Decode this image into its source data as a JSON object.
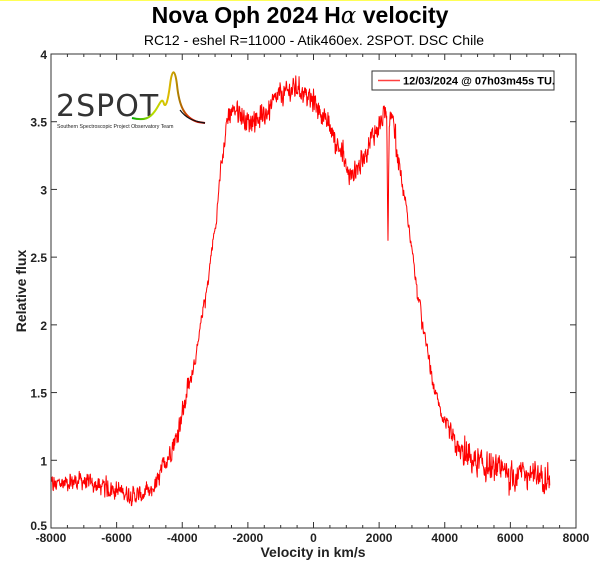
{
  "chart_data": {
    "type": "line",
    "title": "Nova Oph 2024 H",
    "title_greek": "α",
    "title_suffix": " velocity",
    "subtitle": "RC12 - eshel R=11000 - Atik460ex. 2SPOT. DSC Chile",
    "xlabel": "Velocity in km/s",
    "ylabel": "Relative flux",
    "xlim": [
      -8000,
      8000
    ],
    "ylim": [
      0.5,
      4
    ],
    "xticks": [
      -8000,
      -6000,
      -4000,
      -2000,
      0,
      2000,
      4000,
      6000,
      8000
    ],
    "xtick_labels": [
      "-8000",
      "-6000",
      "-4000",
      "-2000",
      "0",
      "2000",
      "4000",
      "6000",
      "8000"
    ],
    "xminor_step": 500,
    "yticks": [
      0.5,
      1,
      1.5,
      2,
      2.5,
      3,
      3.5,
      4
    ],
    "ytick_labels": [
      "0.5",
      "1",
      "1.5",
      "2",
      "2.5",
      "3",
      "3.5",
      "4"
    ],
    "grid": false,
    "legend_position": "top-right",
    "series": [
      {
        "name": "12/03/2024 @ 07h03m45s TU.",
        "color": "#ff0000",
        "x_range": [
          -8000,
          7200
        ],
        "profile_x": [
          -8000,
          -7500,
          -7000,
          -6500,
          -6000,
          -5500,
          -5000,
          -4800,
          -4500,
          -4200,
          -4000,
          -3800,
          -3600,
          -3300,
          -3000,
          -2800,
          -2600,
          -2400,
          -2000,
          -1500,
          -1000,
          -500,
          0,
          400,
          800,
          1100,
          1500,
          1800,
          2200,
          2400,
          2600,
          2800,
          3000,
          3200,
          3400,
          3700,
          4000,
          4500,
          5000,
          5500,
          6000,
          6500,
          7200
        ],
        "profile_y": [
          0.82,
          0.84,
          0.85,
          0.8,
          0.78,
          0.74,
          0.75,
          0.82,
          1.0,
          1.15,
          1.35,
          1.55,
          1.75,
          2.2,
          2.7,
          3.2,
          3.55,
          3.6,
          3.5,
          3.55,
          3.7,
          3.75,
          3.65,
          3.5,
          3.3,
          3.1,
          3.2,
          3.4,
          3.55,
          3.5,
          3.2,
          2.9,
          2.55,
          2.2,
          1.9,
          1.5,
          1.25,
          1.05,
          0.98,
          0.92,
          0.88,
          0.9,
          0.88
        ],
        "absorption_feature": {
          "x": 2270,
          "min_flux": 2.6
        },
        "noise_amplitude": 0.1
      }
    ]
  },
  "logo": {
    "name": "2SPOT",
    "tagline": "Southern Spectroscopic Project Observatory Team"
  },
  "legend": {
    "label": "12/03/2024 @ 07h03m45s TU."
  }
}
